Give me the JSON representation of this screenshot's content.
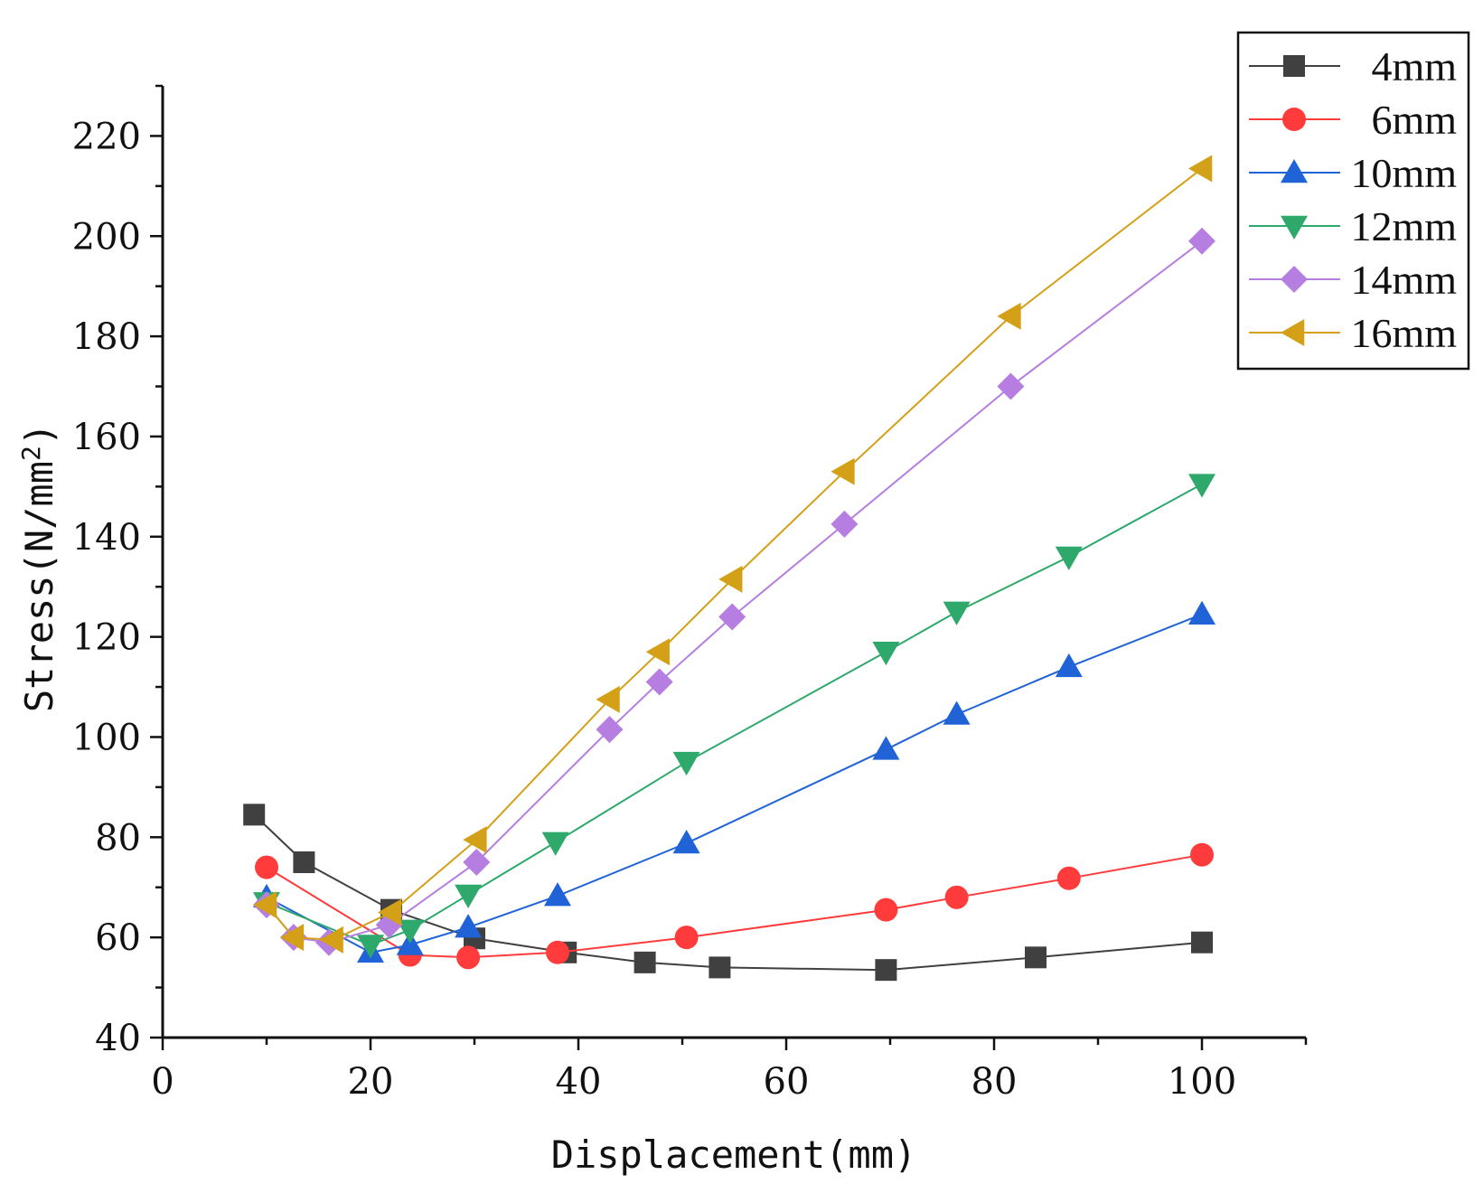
{
  "chart_data": {
    "type": "line",
    "title": "",
    "xlabel": "Displacement(mm)",
    "ylabel": "Stress",
    "ylabel_unit": "(N/mm",
    "ylabel_unit_sup": "2",
    "ylabel_unit_close": ")",
    "xlim": [
      0,
      110
    ],
    "ylim": [
      40,
      230
    ],
    "xticks": [
      0,
      20,
      40,
      60,
      80,
      100
    ],
    "yticks": [
      40,
      60,
      80,
      100,
      120,
      140,
      160,
      180,
      200,
      220
    ],
    "grid": false,
    "legend_position": "top-right",
    "series": [
      {
        "name": "4mm",
        "color": "#404040",
        "marker": "square",
        "x": [
          8.8,
          13.6,
          22.0,
          30.0,
          38.8,
          46.4,
          53.6,
          69.6,
          84.0,
          100.0
        ],
        "y": [
          84.5,
          75.0,
          65.5,
          59.8,
          57.0,
          55.0,
          54.0,
          53.5,
          56.0,
          59.0
        ]
      },
      {
        "name": "6mm",
        "color": "#ff3b3b",
        "marker": "circle",
        "x": [
          10.0,
          23.8,
          29.4,
          38.0,
          50.4,
          69.6,
          76.4,
          87.2,
          100.0
        ],
        "y": [
          74.0,
          56.5,
          56.0,
          57.0,
          60.0,
          65.5,
          68.0,
          71.8,
          76.5
        ]
      },
      {
        "name": "10mm",
        "color": "#1f63d6",
        "marker": "triangle-up",
        "x": [
          10.0,
          20.0,
          23.8,
          29.4,
          38.0,
          50.4,
          69.6,
          76.4,
          87.2,
          100.0
        ],
        "y": [
          68.0,
          57.0,
          58.5,
          62.0,
          68.3,
          78.8,
          97.5,
          104.5,
          114.0,
          124.5
        ]
      },
      {
        "name": "12mm",
        "color": "#2ea86b",
        "marker": "triangle-down",
        "x": [
          10.0,
          20.0,
          23.8,
          29.4,
          37.8,
          50.4,
          69.6,
          76.4,
          87.2,
          100.0
        ],
        "y": [
          67.0,
          58.5,
          61.5,
          68.5,
          79.0,
          95.0,
          117.0,
          125.0,
          136.0,
          150.5
        ]
      },
      {
        "name": "14mm",
        "color": "#b57ee0",
        "marker": "diamond",
        "x": [
          10.0,
          12.6,
          16.0,
          21.8,
          30.2,
          43.0,
          47.8,
          54.8,
          65.6,
          81.6,
          100.0
        ],
        "y": [
          66.5,
          60.0,
          59.0,
          62.5,
          75.0,
          101.5,
          111.0,
          124.0,
          142.5,
          170.0,
          199.0
        ]
      },
      {
        "name": "16mm",
        "color": "#d4a017",
        "marker": "triangle-left",
        "x": [
          10.0,
          12.6,
          16.4,
          22.0,
          30.2,
          43.0,
          47.8,
          54.8,
          65.6,
          81.6,
          100.0
        ],
        "y": [
          66.5,
          60.0,
          59.5,
          65.0,
          79.5,
          107.5,
          117.0,
          131.5,
          153.0,
          184.0,
          213.5
        ]
      }
    ]
  }
}
